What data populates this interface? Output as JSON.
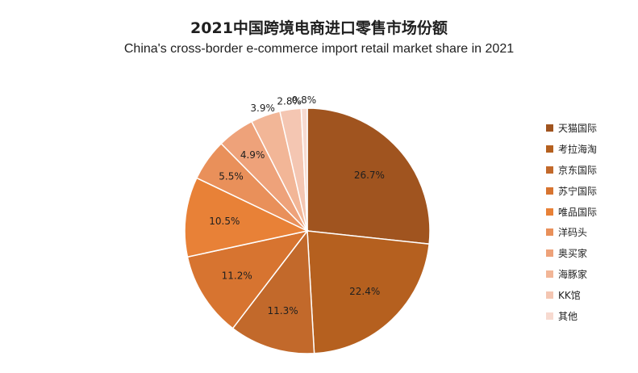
{
  "title_cn": "2021中国跨境电商进口零售市场份额",
  "title_en": "China's cross-border e-commerce import retail market share in 2021",
  "chart_data": {
    "type": "pie",
    "title": "2021中国跨境电商进口零售市场份额",
    "subtitle": "China's cross-border e-commerce import retail market share in 2021",
    "legend_position": "right",
    "slices": [
      {
        "label": "天猫国际",
        "value": 26.7,
        "display": "26.7%",
        "color": "#a0541f"
      },
      {
        "label": "考拉海淘",
        "value": 22.4,
        "display": "22.4%",
        "color": "#b5601f"
      },
      {
        "label": "京东国际",
        "value": 11.3,
        "display": "11.3%",
        "color": "#c2692b"
      },
      {
        "label": "苏宁国际",
        "value": 11.2,
        "display": "11.2%",
        "color": "#d77430"
      },
      {
        "label": "唯品国际",
        "value": 10.5,
        "display": "10.5%",
        "color": "#e88137"
      },
      {
        "label": "洋码头",
        "value": 5.5,
        "display": "5.5%",
        "color": "#e9905a"
      },
      {
        "label": "奥买家",
        "value": 4.9,
        "display": "4.9%",
        "color": "#eea27a"
      },
      {
        "label": "海豚家",
        "value": 3.9,
        "display": "3.9%",
        "color": "#f2b697"
      },
      {
        "label": "KK馆",
        "value": 2.8,
        "display": "2.8%",
        "color": "#f4c6b2"
      },
      {
        "label": "其他",
        "value": 0.8,
        "display": "0.8%",
        "color": "#f7dad0"
      }
    ]
  }
}
